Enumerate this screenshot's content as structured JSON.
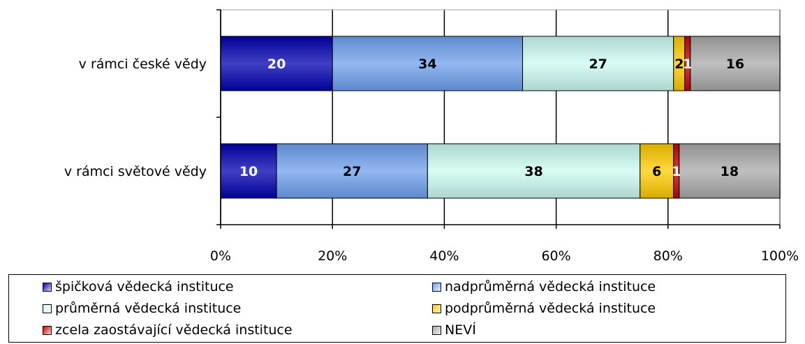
{
  "chart_data": {
    "type": "bar",
    "orientation": "horizontal",
    "stacked": "percent",
    "title": "",
    "xlabel": "",
    "ylabel": "",
    "xlim": [
      0,
      100
    ],
    "x_ticks": [
      "0%",
      "20%",
      "40%",
      "60%",
      "80%",
      "100%"
    ],
    "x_tick_values": [
      0,
      20,
      40,
      60,
      80,
      100
    ],
    "grid": true,
    "legend_position": "bottom",
    "categories": [
      "v rámci české vědy",
      "v rámci světové vědy"
    ],
    "series": [
      {
        "name": "špičková vědecká instituce",
        "values": [
          20,
          10
        ],
        "color": "#0000b0",
        "label_color": "#ffffff"
      },
      {
        "name": "nadprůměrná vědecká instituce",
        "values": [
          34,
          27
        ],
        "color": "#6fa0ee",
        "label_color": "#000000"
      },
      {
        "name": "průměrná vědecká instituce",
        "values": [
          27,
          38
        ],
        "color": "#ccfcf2",
        "label_color": "#000000"
      },
      {
        "name": "podprůměrná vědecká instituce",
        "values": [
          2,
          6
        ],
        "color": "#ffcc00",
        "label_color": "#000000"
      },
      {
        "name": "zcela zaostávající vědecká instituce",
        "values": [
          1,
          1
        ],
        "color": "#cc0000",
        "label_color": "#ffffff"
      },
      {
        "name": "NEVÍ",
        "values": [
          16,
          18
        ],
        "color": "#a9a9a9",
        "label_color": "#000000"
      }
    ]
  }
}
